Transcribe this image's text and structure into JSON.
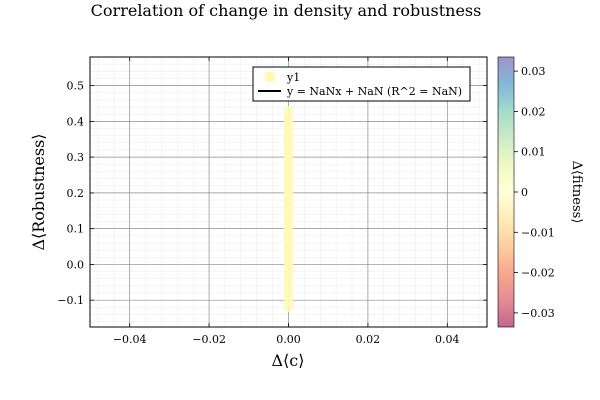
{
  "chart_data": {
    "type": "scatter",
    "title": "Correlation of change in density and robustness",
    "xlabel": "Δ⟨c⟩",
    "ylabel": "Δ⟨Robustness⟩",
    "xlim": [
      -0.05,
      0.05
    ],
    "ylim": [
      -0.175,
      0.58
    ],
    "x_ticks": [
      -0.04,
      -0.02,
      0.0,
      0.02,
      0.04
    ],
    "x_tick_labels": [
      "−0.04",
      "−0.02",
      "0.00",
      "0.02",
      "0.04"
    ],
    "y_ticks": [
      -0.1,
      0.0,
      0.1,
      0.2,
      0.3,
      0.4,
      0.5
    ],
    "y_tick_labels": [
      "−0.1",
      "0.0",
      "0.1",
      "0.2",
      "0.3",
      "0.4",
      "0.5"
    ],
    "grid": true,
    "legend": {
      "position": "top-right",
      "entries": [
        {
          "label": "y1",
          "marker": "circle",
          "color": "#FEF9B6"
        },
        {
          "label": "y = NaNx + NaN (R^2 = NaN)",
          "marker": "line",
          "color": "#000000"
        }
      ]
    },
    "series": [
      {
        "name": "y1",
        "color": "#FEF9B6",
        "x": [
          0,
          0,
          0,
          0,
          0,
          0,
          0,
          0,
          0,
          0,
          0,
          0,
          0,
          0,
          0,
          0,
          0,
          0,
          0,
          0,
          0,
          0,
          0,
          0,
          0,
          0,
          0,
          0,
          0,
          0,
          0,
          0,
          0,
          0,
          0,
          0,
          0,
          0,
          0,
          0,
          0,
          0,
          0,
          0,
          0,
          0,
          0,
          0,
          0,
          0,
          0
        ],
        "y": [
          -0.12,
          -0.105,
          -0.09,
          -0.075,
          -0.06,
          -0.045,
          -0.03,
          -0.015,
          0.0,
          0.01,
          0.02,
          0.03,
          0.04,
          0.05,
          0.06,
          0.07,
          0.08,
          0.09,
          0.1,
          0.11,
          0.12,
          0.13,
          0.14,
          0.15,
          0.16,
          0.17,
          0.18,
          0.19,
          0.2,
          0.21,
          0.22,
          0.23,
          0.24,
          0.25,
          0.26,
          0.27,
          0.28,
          0.29,
          0.3,
          0.31,
          0.32,
          0.33,
          0.34,
          0.35,
          0.36,
          0.37,
          0.38,
          0.39,
          0.4,
          0.41,
          0.43
        ]
      }
    ],
    "colorbar": {
      "label": "Δ⟨fitness⟩",
      "range": [
        -0.0335,
        0.0335
      ],
      "ticks": [
        -0.03,
        -0.02,
        -0.01,
        0.0,
        0.01,
        0.02,
        0.03
      ],
      "tick_labels": [
        "−0.03",
        "−0.02",
        "−0.01",
        "0",
        "0.01",
        "0.02",
        "0.03"
      ],
      "colormap": [
        "#9E0142",
        "#D53E4F",
        "#F46D43",
        "#FDAE61",
        "#FEE08B",
        "#FFFFBF",
        "#E6F598",
        "#ABDDA4",
        "#66C2A5",
        "#3288BD",
        "#5E4FA2"
      ],
      "opacity": 0.6
    }
  }
}
